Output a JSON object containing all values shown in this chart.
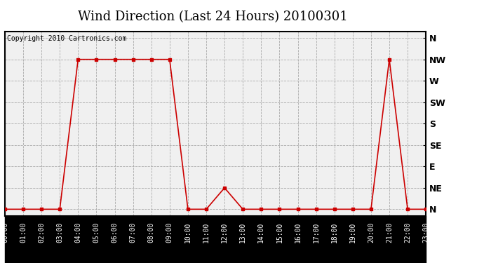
{
  "title": "Wind Direction (Last 24 Hours) 20100301",
  "copyright_text": "Copyright 2010 Cartronics.com",
  "outer_bg_color": "#ffffff",
  "plot_bg_color": "#f0f0f0",
  "xtick_area_color": "#000000",
  "line_color": "#cc0000",
  "marker_color": "#cc0000",
  "ytick_labels": [
    "N",
    "NE",
    "E",
    "SE",
    "S",
    "SW",
    "W",
    "NW",
    "N"
  ],
  "ytick_values": [
    0,
    1,
    2,
    3,
    4,
    5,
    6,
    7,
    8
  ],
  "hours": [
    0,
    1,
    2,
    3,
    4,
    5,
    6,
    7,
    8,
    9,
    10,
    11,
    12,
    13,
    14,
    15,
    16,
    17,
    18,
    19,
    20,
    21,
    22,
    23
  ],
  "wind_values": [
    0,
    0,
    0,
    0,
    7,
    7,
    7,
    7,
    7,
    7,
    0,
    0,
    1,
    0,
    0,
    0,
    0,
    0,
    0,
    0,
    0,
    7,
    0,
    0
  ],
  "grid_color": "#aaaaaa",
  "title_fontsize": 13,
  "copyright_fontsize": 7,
  "ytick_fontsize": 9,
  "xtick_fontsize": 7,
  "figsize": [
    6.9,
    3.75
  ],
  "dpi": 100
}
